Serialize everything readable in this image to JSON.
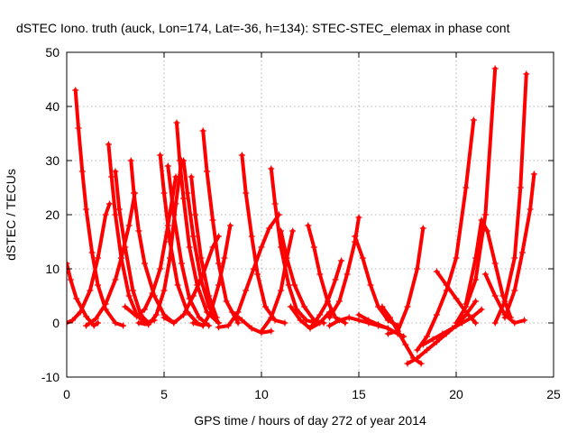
{
  "chart_data": {
    "type": "scatter",
    "title": "dSTEC Iono. truth (auck, Lon=174, Lat=-36, h=134): STEC-STEC_elemax in phase cont",
    "xlabel": "GPS time / hours of day 272 of year 2014",
    "ylabel": "dSTEC  / TECUs",
    "xlim": [
      0,
      25
    ],
    "ylim": [
      -10,
      50
    ],
    "xticks": [
      0,
      5,
      10,
      15,
      20,
      25
    ],
    "yticks": [
      -10,
      0,
      10,
      20,
      30,
      40,
      50
    ],
    "grid": true,
    "legend": "none",
    "marker": "plus",
    "color": "#ff0000",
    "series": [
      {
        "x": [
          0.0,
          0.3,
          0.7,
          1.2,
          1.6,
          2.0,
          2.2
        ],
        "y": [
          0.0,
          0.5,
          2.0,
          6.0,
          12.0,
          20.0,
          22.0
        ]
      },
      {
        "x": [
          0.0,
          0.2,
          0.5,
          1.0,
          1.4,
          1.6
        ],
        "y": [
          11.0,
          8.0,
          4.5,
          1.2,
          -0.5,
          0.0
        ]
      },
      {
        "x": [
          0.45,
          0.6,
          0.8,
          1.0,
          1.3,
          1.6,
          2.0,
          2.5,
          2.9
        ],
        "y": [
          43.0,
          36.0,
          28.0,
          21.0,
          13.0,
          7.0,
          2.5,
          0.0,
          -0.5
        ]
      },
      {
        "x": [
          1.0,
          1.5,
          2.0,
          2.5,
          2.8,
          3.2,
          3.5
        ],
        "y": [
          -0.5,
          0.8,
          3.5,
          8.0,
          12.0,
          18.0,
          24.0
        ]
      },
      {
        "x": [
          2.15,
          2.3,
          2.5,
          2.8,
          3.2,
          3.6,
          4.0,
          4.5
        ],
        "y": [
          33.0,
          27.0,
          20.0,
          12.0,
          5.0,
          1.5,
          0.0,
          0.5
        ]
      },
      {
        "x": [
          2.5,
          2.7,
          3.0,
          3.4,
          3.8,
          4.2
        ],
        "y": [
          28.0,
          21.0,
          14.0,
          6.0,
          1.5,
          0.0
        ]
      },
      {
        "x": [
          3.3,
          3.45,
          3.7,
          4.0,
          4.5,
          5.0,
          5.5
        ],
        "y": [
          30.0,
          24.0,
          17.0,
          11.0,
          5.0,
          1.5,
          0.0
        ]
      },
      {
        "x": [
          3.0,
          3.6,
          4.0,
          4.4,
          4.8,
          5.2,
          5.6
        ],
        "y": [
          3.0,
          1.2,
          2.5,
          5.5,
          10.0,
          18.0,
          27.0
        ]
      },
      {
        "x": [
          3.7,
          4.2,
          4.6,
          5.0,
          5.3,
          5.6,
          5.9
        ],
        "y": [
          0.0,
          -0.3,
          1.5,
          6.0,
          12.0,
          22.0,
          30.0
        ]
      },
      {
        "x": [
          4.8,
          5.0,
          5.3,
          5.7,
          6.2,
          6.7,
          7.0
        ],
        "y": [
          31.0,
          24.0,
          15.0,
          7.0,
          2.0,
          0.0,
          -0.5
        ]
      },
      {
        "x": [
          5.2,
          5.5,
          5.9,
          6.3,
          6.8,
          7.3
        ],
        "y": [
          29.0,
          20.0,
          11.0,
          4.5,
          1.0,
          -0.5
        ]
      },
      {
        "x": [
          5.65,
          5.8,
          6.0,
          6.3,
          6.7,
          7.2,
          7.8
        ],
        "y": [
          37.0,
          30.0,
          23.0,
          14.0,
          7.0,
          2.0,
          0.0
        ]
      },
      {
        "x": [
          6.0,
          6.2,
          6.5,
          6.9,
          7.3,
          7.8
        ],
        "y": [
          30.0,
          24.0,
          16.0,
          8.0,
          3.0,
          0.0
        ]
      },
      {
        "x": [
          6.4,
          6.6,
          6.9,
          7.3,
          7.7
        ],
        "y": [
          27.0,
          20.0,
          12.0,
          5.0,
          1.0
        ]
      },
      {
        "x": [
          7.0,
          7.2,
          7.5,
          7.8,
          8.2,
          8.8
        ],
        "y": [
          35.5,
          28.0,
          19.0,
          11.0,
          4.0,
          0.0
        ]
      },
      {
        "x": [
          5.0,
          5.5,
          6.0,
          6.5,
          7.0,
          7.5,
          7.8
        ],
        "y": [
          1.0,
          0.0,
          1.5,
          5.0,
          9.0,
          14.0,
          16.0
        ]
      },
      {
        "x": [
          6.5,
          7.0,
          7.4,
          7.8,
          8.1,
          8.4
        ],
        "y": [
          0.0,
          -0.5,
          2.0,
          7.0,
          12.0,
          18.0
        ]
      },
      {
        "x": [
          7.8,
          8.3,
          8.8,
          9.2,
          9.6,
          10.0,
          10.4,
          10.9
        ],
        "y": [
          -0.8,
          -0.5,
          2.0,
          6.0,
          10.0,
          14.0,
          17.5,
          20.0
        ]
      },
      {
        "x": [
          9.0,
          9.2,
          9.5,
          9.8,
          10.2,
          10.7,
          11.2
        ],
        "y": [
          31.0,
          24.0,
          16.0,
          9.0,
          3.0,
          0.5,
          0.0
        ]
      },
      {
        "x": [
          8.5,
          9.0,
          9.5,
          10.0,
          10.5
        ],
        "y": [
          2.0,
          0.5,
          -1.0,
          -1.8,
          -1.5
        ]
      },
      {
        "x": [
          10.5,
          10.7,
          11.0,
          11.4,
          11.8,
          12.3,
          12.8
        ],
        "y": [
          28.5,
          22.0,
          14.0,
          7.0,
          2.5,
          0.5,
          0.0
        ]
      },
      {
        "x": [
          10.0,
          10.5,
          11.0,
          11.3,
          11.6
        ],
        "y": [
          -1.5,
          1.0,
          6.0,
          12.0,
          17.0
        ]
      },
      {
        "x": [
          11.0,
          11.3,
          11.7,
          12.2,
          12.7,
          13.2
        ],
        "y": [
          17.0,
          12.0,
          7.0,
          3.0,
          0.5,
          0.0
        ]
      },
      {
        "x": [
          11.5,
          12.0,
          12.5,
          13.0,
          13.5
        ],
        "y": [
          3.0,
          0.5,
          -1.0,
          0.0,
          2.0
        ]
      },
      {
        "x": [
          12.4,
          12.7,
          13.0,
          13.4,
          13.8,
          14.3
        ],
        "y": [
          18.0,
          14.0,
          9.0,
          4.0,
          1.0,
          0.0
        ]
      },
      {
        "x": [
          12.6,
          13.0,
          13.4,
          13.8,
          14.1
        ],
        "y": [
          -0.5,
          1.5,
          4.0,
          8.0,
          11.5
        ]
      },
      {
        "x": [
          13.5,
          14.0,
          14.4,
          14.8,
          15.0
        ],
        "y": [
          1.0,
          4.0,
          9.0,
          15.0,
          19.5
        ]
      },
      {
        "x": [
          13.5,
          14.0,
          14.5,
          15.0,
          15.5,
          16.0,
          16.5
        ],
        "y": [
          -0.5,
          0.5,
          1.0,
          0.5,
          0.0,
          -0.5,
          -1.0
        ]
      },
      {
        "x": [
          14.8,
          15.2,
          15.6,
          16.0,
          16.5,
          17.0
        ],
        "y": [
          16.0,
          12.0,
          7.0,
          3.0,
          0.5,
          -0.5
        ]
      },
      {
        "x": [
          15.0,
          15.5,
          16.0,
          16.5,
          17.0,
          17.3
        ],
        "y": [
          1.5,
          0.5,
          -0.3,
          -1.0,
          -2.0,
          -2.5
        ]
      },
      {
        "x": [
          16.2,
          16.6,
          17.0,
          17.4,
          17.8,
          18.2
        ],
        "y": [
          3.0,
          1.0,
          -1.5,
          -4.0,
          -6.5,
          -7.5
        ]
      },
      {
        "x": [
          16.5,
          17.0,
          17.5,
          18.0,
          18.3
        ],
        "y": [
          -2.0,
          -1.5,
          3.0,
          10.0,
          17.5
        ]
      },
      {
        "x": [
          17.5,
          18.0,
          18.5,
          19.0,
          19.5,
          20.0,
          20.5,
          21.0
        ],
        "y": [
          -7.5,
          -6.5,
          -5.0,
          -3.5,
          -2.0,
          -0.5,
          1.5,
          4.0
        ]
      },
      {
        "x": [
          18.0,
          18.5,
          19.0,
          19.5,
          20.0,
          20.5,
          20.9
        ],
        "y": [
          -5.0,
          -2.5,
          1.5,
          6.0,
          12.0,
          25.0,
          37.5
        ]
      },
      {
        "x": [
          18.3,
          18.8,
          19.3,
          19.8,
          20.3,
          20.8,
          21.3
        ],
        "y": [
          -4.0,
          -3.0,
          -2.0,
          -1.0,
          0.0,
          1.0,
          2.5
        ]
      },
      {
        "x": [
          19.0,
          19.5,
          20.0,
          20.5,
          21.0
        ],
        "y": [
          9.5,
          7.0,
          4.5,
          2.0,
          0.0
        ]
      },
      {
        "x": [
          20.0,
          20.5,
          21.0,
          21.5,
          22.0
        ],
        "y": [
          0.0,
          3.0,
          8.0,
          20.0,
          47.0
        ]
      },
      {
        "x": [
          20.5,
          21.0,
          21.3,
          21.6,
          22.0,
          22.4,
          22.8
        ],
        "y": [
          3.5,
          12.0,
          19.0,
          17.0,
          11.0,
          5.0,
          1.0
        ]
      },
      {
        "x": [
          21.5,
          22.0,
          22.5,
          23.0,
          23.5
        ],
        "y": [
          9.0,
          5.0,
          1.5,
          0.0,
          0.5
        ]
      },
      {
        "x": [
          22.0,
          22.5,
          23.0,
          23.3,
          23.6
        ],
        "y": [
          0.0,
          4.0,
          12.0,
          25.0,
          46.0
        ]
      },
      {
        "x": [
          22.5,
          23.0,
          23.4,
          23.8,
          24.0
        ],
        "y": [
          1.0,
          6.0,
          13.0,
          21.0,
          27.5
        ]
      }
    ]
  }
}
